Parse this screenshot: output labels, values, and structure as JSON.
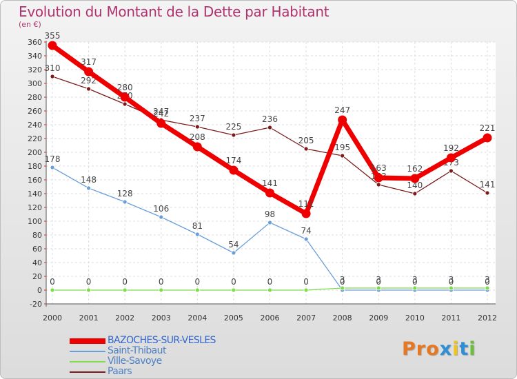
{
  "title": "Evolution du Montant de la Dette par Habitant",
  "unit_label": "(en €)",
  "logo": {
    "text": "Proxiti",
    "letter_colors": [
      "#e87722",
      "#e87722",
      "#e87722",
      "#2e8fd6",
      "#f0c419",
      "#2e8fd6",
      "#6cbf3a"
    ]
  },
  "chart_data": {
    "type": "line",
    "title": "Evolution du Montant de la Dette par Habitant",
    "ylabel": "(en €)",
    "xlabel": "",
    "categories": [
      "2000",
      "2001",
      "2002",
      "2003",
      "2004",
      "2005",
      "2006",
      "2007",
      "2008",
      "2009",
      "2010",
      "2011",
      "2012"
    ],
    "ylim": [
      -20,
      360
    ],
    "yticks": [
      -20,
      0,
      20,
      40,
      60,
      80,
      100,
      120,
      140,
      160,
      180,
      200,
      220,
      240,
      260,
      280,
      300,
      320,
      340,
      360
    ],
    "grid": true,
    "legend_position": "bottom-left",
    "series": [
      {
        "name": "BAZOCHES-SUR-VESLES",
        "color": "#ee0000",
        "values": [
          355,
          317,
          280,
          242,
          208,
          174,
          141,
          111,
          247,
          163,
          162,
          192,
          221
        ],
        "labels": [
          "355",
          "317",
          "280",
          "242",
          "208",
          "174",
          "141",
          "111",
          "247",
          "163",
          "162",
          "192",
          "221"
        ]
      },
      {
        "name": "Saint-Thibaut",
        "color": "#6a9ed8",
        "values": [
          178,
          148,
          128,
          106,
          81,
          54,
          98,
          74,
          0,
          0,
          0,
          0,
          0
        ],
        "labels": [
          "178",
          "148",
          "128",
          "106",
          "81",
          "54",
          "98",
          "74",
          "0",
          "0",
          "0",
          "0",
          "0"
        ]
      },
      {
        "name": "Ville-Savoye",
        "color": "#7ddc4a",
        "values": [
          0,
          0,
          0,
          0,
          0,
          0,
          0,
          0,
          3,
          3,
          3,
          3,
          3
        ],
        "labels": [
          "0",
          "0",
          "0",
          "0",
          "0",
          "0",
          "0",
          "0",
          "3",
          "3",
          "3",
          "3",
          "3"
        ]
      },
      {
        "name": "Paars",
        "color": "#7a1a1a",
        "values": [
          310,
          292,
          270,
          247,
          237,
          225,
          236,
          205,
          195,
          153,
          140,
          173,
          141
        ],
        "labels": [
          "310",
          "292",
          "270",
          "247",
          "237",
          "225",
          "236",
          "205",
          "195",
          "153",
          "140",
          "173",
          "141"
        ]
      }
    ]
  }
}
